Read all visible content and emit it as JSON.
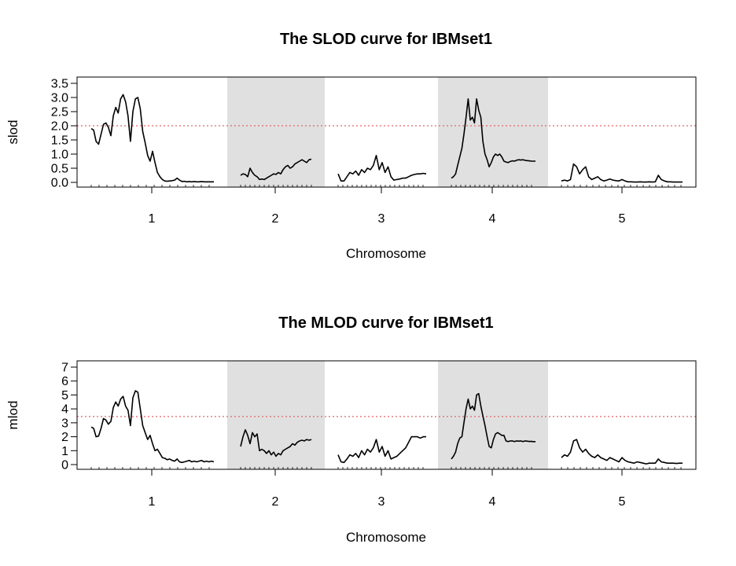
{
  "chart_data": [
    {
      "type": "line",
      "title": "The SLOD curve for IBMset1",
      "xlabel": "Chromosome",
      "ylabel": "slod",
      "ylim": [
        0,
        3.5
      ],
      "yticks": [
        0.0,
        0.5,
        1.0,
        1.5,
        2.0,
        2.5,
        3.0,
        3.5
      ],
      "ytick_labels": [
        "0.0",
        "0.5",
        "1.0",
        "1.5",
        "2.0",
        "2.5",
        "3.0",
        "3.5"
      ],
      "threshold": 2.0,
      "threshold_color": "#e06666",
      "shaded_chromosomes": [
        "2",
        "4"
      ],
      "shade_color": "#e0e0e0",
      "line_color": "#000000",
      "chromosomes": [
        {
          "label": "1",
          "x": [
            0,
            1,
            2,
            3,
            4,
            5,
            6,
            7,
            8,
            9,
            10,
            11,
            12,
            13,
            14,
            15,
            16,
            17,
            18,
            19,
            20,
            21,
            22,
            23,
            24,
            25,
            26,
            27,
            28,
            29,
            30,
            31,
            32,
            33,
            34,
            35,
            36,
            37,
            38,
            39,
            40,
            41,
            42,
            43,
            44,
            45,
            46,
            47,
            48,
            49,
            50
          ],
          "y": [
            1.9,
            1.85,
            1.45,
            1.35,
            1.7,
            2.05,
            2.1,
            1.95,
            1.65,
            2.35,
            2.65,
            2.45,
            2.95,
            3.1,
            2.85,
            2.35,
            1.45,
            2.5,
            2.95,
            3.0,
            2.6,
            1.8,
            1.4,
            0.95,
            0.75,
            1.1,
            0.7,
            0.35,
            0.2,
            0.1,
            0.05,
            0.04,
            0.05,
            0.06,
            0.08,
            0.15,
            0.08,
            0.03,
            0.04,
            0.02,
            0.03,
            0.02,
            0.03,
            0.02,
            0.02,
            0.03,
            0.02,
            0.02,
            0.02,
            0.02,
            0.02
          ]
        },
        {
          "label": "2",
          "x": [
            0,
            1,
            2,
            3,
            4,
            5,
            6,
            7,
            8,
            9,
            10,
            11,
            12,
            13,
            14,
            15,
            16,
            17,
            18,
            19,
            20,
            21,
            22,
            23,
            24,
            25,
            26,
            27,
            28,
            29,
            30
          ],
          "y": [
            0.25,
            0.3,
            0.28,
            0.2,
            0.5,
            0.35,
            0.25,
            0.2,
            0.1,
            0.12,
            0.1,
            0.15,
            0.2,
            0.25,
            0.3,
            0.28,
            0.35,
            0.3,
            0.45,
            0.55,
            0.6,
            0.5,
            0.55,
            0.65,
            0.7,
            0.75,
            0.8,
            0.75,
            0.7,
            0.8,
            0.82
          ]
        },
        {
          "label": "3",
          "x": [
            0,
            1,
            2,
            3,
            4,
            5,
            6,
            7,
            8,
            9,
            10,
            11,
            12,
            13,
            14,
            15,
            16,
            17,
            18,
            19,
            20,
            21,
            22,
            23,
            24,
            25,
            26,
            27,
            28,
            29,
            30
          ],
          "y": [
            0.3,
            0.05,
            0.05,
            0.2,
            0.35,
            0.3,
            0.4,
            0.25,
            0.45,
            0.35,
            0.5,
            0.45,
            0.6,
            0.95,
            0.45,
            0.7,
            0.35,
            0.55,
            0.2,
            0.08,
            0.1,
            0.12,
            0.15,
            0.15,
            0.2,
            0.25,
            0.28,
            0.3,
            0.3,
            0.32,
            0.3
          ]
        },
        {
          "label": "4",
          "x": [
            0,
            1,
            2,
            3,
            4,
            5,
            6,
            7,
            8,
            9,
            10,
            11,
            12,
            13,
            14,
            15,
            16,
            17,
            18,
            19,
            20,
            21,
            22,
            23,
            24,
            25,
            26,
            27,
            28,
            29,
            30,
            31,
            32,
            33,
            34,
            35,
            36,
            37,
            38,
            39,
            40
          ],
          "y": [
            0.15,
            0.2,
            0.3,
            0.6,
            0.9,
            1.2,
            1.7,
            2.3,
            2.95,
            2.2,
            2.3,
            2.1,
            2.95,
            2.55,
            2.3,
            1.45,
            1.0,
            0.8,
            0.55,
            0.7,
            0.9,
            1.0,
            0.95,
            1.0,
            0.9,
            0.75,
            0.72,
            0.7,
            0.74,
            0.76,
            0.75,
            0.78,
            0.8,
            0.79,
            0.8,
            0.78,
            0.77,
            0.76,
            0.75,
            0.75,
            0.75
          ]
        },
        {
          "label": "5",
          "x": [
            0,
            1,
            2,
            3,
            4,
            5,
            6,
            7,
            8,
            9,
            10,
            11,
            12,
            13,
            14,
            15,
            16,
            17,
            18,
            19,
            20,
            21,
            22,
            23,
            24,
            25,
            26,
            27,
            28,
            29,
            30,
            31,
            32,
            33,
            34,
            35,
            36,
            37,
            38,
            39,
            40
          ],
          "y": [
            0.05,
            0.08,
            0.05,
            0.1,
            0.65,
            0.55,
            0.3,
            0.45,
            0.55,
            0.2,
            0.1,
            0.15,
            0.2,
            0.1,
            0.05,
            0.08,
            0.12,
            0.08,
            0.06,
            0.05,
            0.1,
            0.05,
            0.02,
            0.02,
            0.01,
            0.01,
            0.02,
            0.01,
            0.01,
            0.02,
            0.01,
            0.02,
            0.25,
            0.1,
            0.05,
            0.02,
            0.02,
            0.01,
            0.01,
            0.01,
            0.01
          ]
        }
      ]
    },
    {
      "type": "line",
      "title": "The MLOD curve for IBMset1",
      "xlabel": "Chromosome",
      "ylabel": "mlod",
      "ylim": [
        0,
        7
      ],
      "yticks": [
        0,
        1,
        2,
        3,
        4,
        5,
        6,
        7
      ],
      "ytick_labels": [
        "0",
        "1",
        "2",
        "3",
        "4",
        "5",
        "6",
        "7"
      ],
      "threshold": 3.45,
      "threshold_color": "#e06666",
      "shaded_chromosomes": [
        "2",
        "4"
      ],
      "shade_color": "#e0e0e0",
      "line_color": "#000000",
      "chromosomes": [
        {
          "label": "1",
          "x": [
            0,
            1,
            2,
            3,
            4,
            5,
            6,
            7,
            8,
            9,
            10,
            11,
            12,
            13,
            14,
            15,
            16,
            17,
            18,
            19,
            20,
            21,
            22,
            23,
            24,
            25,
            26,
            27,
            28,
            29,
            30,
            31,
            32,
            33,
            34,
            35,
            36,
            37,
            38,
            39,
            40,
            41,
            42,
            43,
            44,
            45,
            46,
            47,
            48,
            49,
            50
          ],
          "y": [
            2.7,
            2.6,
            2.0,
            2.05,
            2.6,
            3.3,
            3.2,
            2.9,
            3.1,
            4.1,
            4.5,
            4.2,
            4.7,
            4.9,
            4.2,
            3.9,
            2.8,
            4.8,
            5.3,
            5.2,
            4.0,
            2.8,
            2.3,
            1.8,
            2.1,
            1.5,
            1.0,
            1.1,
            0.8,
            0.5,
            0.45,
            0.35,
            0.4,
            0.3,
            0.25,
            0.4,
            0.2,
            0.15,
            0.2,
            0.25,
            0.3,
            0.2,
            0.25,
            0.2,
            0.25,
            0.3,
            0.2,
            0.25,
            0.2,
            0.25,
            0.2
          ]
        },
        {
          "label": "2",
          "x": [
            0,
            1,
            2,
            3,
            4,
            5,
            6,
            7,
            8,
            9,
            10,
            11,
            12,
            13,
            14,
            15,
            16,
            17,
            18,
            19,
            20,
            21,
            22,
            23,
            24,
            25,
            26,
            27,
            28,
            29,
            30
          ],
          "y": [
            1.3,
            2.0,
            2.5,
            2.1,
            1.5,
            2.3,
            2.0,
            2.2,
            1.0,
            1.1,
            1.0,
            0.8,
            1.0,
            0.7,
            0.9,
            0.6,
            0.8,
            0.7,
            1.0,
            1.1,
            1.2,
            1.3,
            1.5,
            1.4,
            1.6,
            1.7,
            1.75,
            1.7,
            1.8,
            1.75,
            1.8
          ]
        },
        {
          "label": "3",
          "x": [
            0,
            1,
            2,
            3,
            4,
            5,
            6,
            7,
            8,
            9,
            10,
            11,
            12,
            13,
            14,
            15,
            16,
            17,
            18,
            19,
            20,
            21,
            22,
            23,
            24,
            25,
            26,
            27,
            28,
            29,
            30
          ],
          "y": [
            0.7,
            0.2,
            0.15,
            0.4,
            0.7,
            0.6,
            0.8,
            0.5,
            1.0,
            0.7,
            1.1,
            0.9,
            1.2,
            1.8,
            0.9,
            1.3,
            0.6,
            1.0,
            0.4,
            0.5,
            0.6,
            0.8,
            1.0,
            1.2,
            1.6,
            2.0,
            2.0,
            2.0,
            1.9,
            2.0,
            2.0
          ]
        },
        {
          "label": "4",
          "x": [
            0,
            1,
            2,
            3,
            4,
            5,
            6,
            7,
            8,
            9,
            10,
            11,
            12,
            13,
            14,
            15,
            16,
            17,
            18,
            19,
            20,
            21,
            22,
            23,
            24,
            25,
            26,
            27,
            28,
            29,
            30,
            31,
            32,
            33,
            34,
            35,
            36,
            37,
            38,
            39,
            40
          ],
          "y": [
            0.4,
            0.6,
            0.9,
            1.5,
            1.9,
            2.0,
            3.0,
            4.0,
            4.7,
            4.0,
            4.2,
            3.9,
            5.0,
            5.1,
            4.2,
            3.5,
            2.8,
            2.0,
            1.3,
            1.2,
            1.8,
            2.2,
            2.3,
            2.2,
            2.1,
            2.1,
            1.7,
            1.65,
            1.7,
            1.7,
            1.65,
            1.7,
            1.68,
            1.7,
            1.65,
            1.7,
            1.68,
            1.66,
            1.67,
            1.65,
            1.65
          ]
        },
        {
          "label": "5",
          "x": [
            0,
            1,
            2,
            3,
            4,
            5,
            6,
            7,
            8,
            9,
            10,
            11,
            12,
            13,
            14,
            15,
            16,
            17,
            18,
            19,
            20,
            21,
            22,
            23,
            24,
            25,
            26,
            27,
            28,
            29,
            30,
            31,
            32,
            33,
            34,
            35,
            36,
            37,
            38,
            39,
            40
          ],
          "y": [
            0.5,
            0.7,
            0.6,
            0.9,
            1.7,
            1.8,
            1.2,
            0.9,
            1.1,
            0.8,
            0.6,
            0.5,
            0.7,
            0.5,
            0.4,
            0.3,
            0.5,
            0.4,
            0.3,
            0.2,
            0.5,
            0.3,
            0.2,
            0.15,
            0.1,
            0.2,
            0.15,
            0.1,
            0.05,
            0.1,
            0.1,
            0.1,
            0.4,
            0.2,
            0.15,
            0.1,
            0.1,
            0.1,
            0.08,
            0.1,
            0.1
          ]
        }
      ]
    }
  ]
}
